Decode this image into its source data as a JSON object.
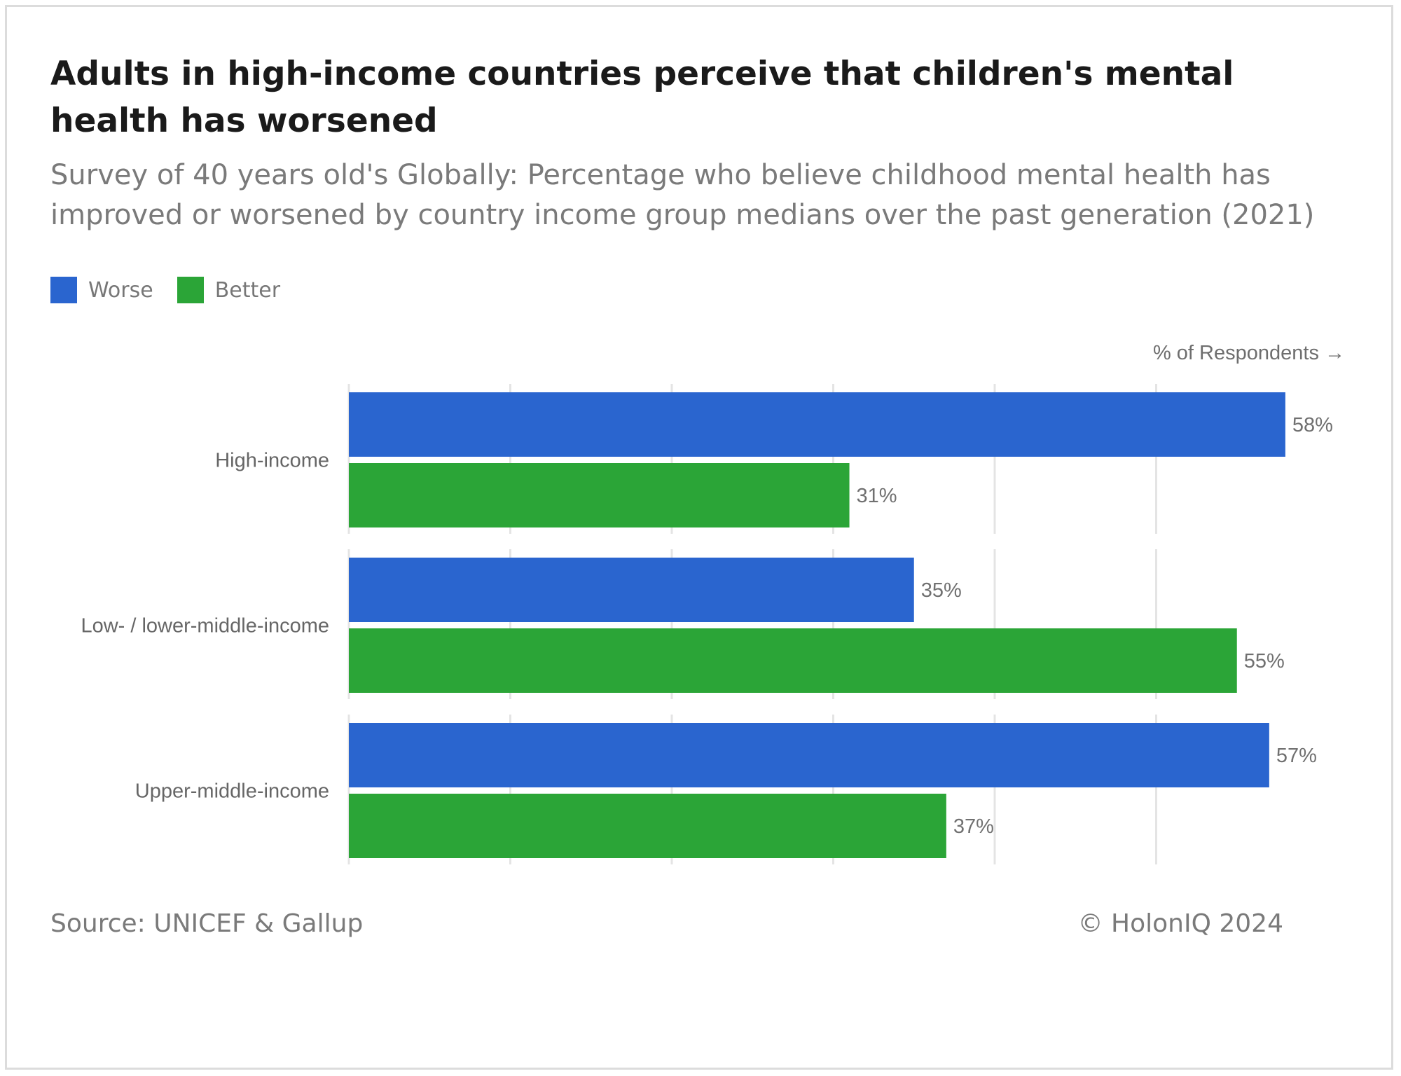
{
  "chart_data": {
    "type": "bar",
    "orientation": "horizontal",
    "title": "Adults in high-income countries perceive that children's mental health has worsened",
    "subtitle": "Survey of 40 years old's Globally: Percentage who believe childhood mental health has improved or worsened by country income group medians over the past generation (2021)",
    "axis_caption": "% of Respondents →",
    "categories": [
      "High-income",
      "Low- / lower-middle-income",
      "Upper-middle-income"
    ],
    "series": [
      {
        "name": "Worse",
        "color": "#2a65cf",
        "values": [
          58,
          35,
          57
        ]
      },
      {
        "name": "Better",
        "color": "#2ba537",
        "values": [
          31,
          55,
          37
        ]
      }
    ],
    "value_suffix": "%",
    "xlim": [
      0,
      60
    ],
    "grid": true,
    "legend_position": "top-left"
  },
  "footer": {
    "source": "Source: UNICEF & Gallup",
    "copyright": "© HolonIQ 2024"
  }
}
